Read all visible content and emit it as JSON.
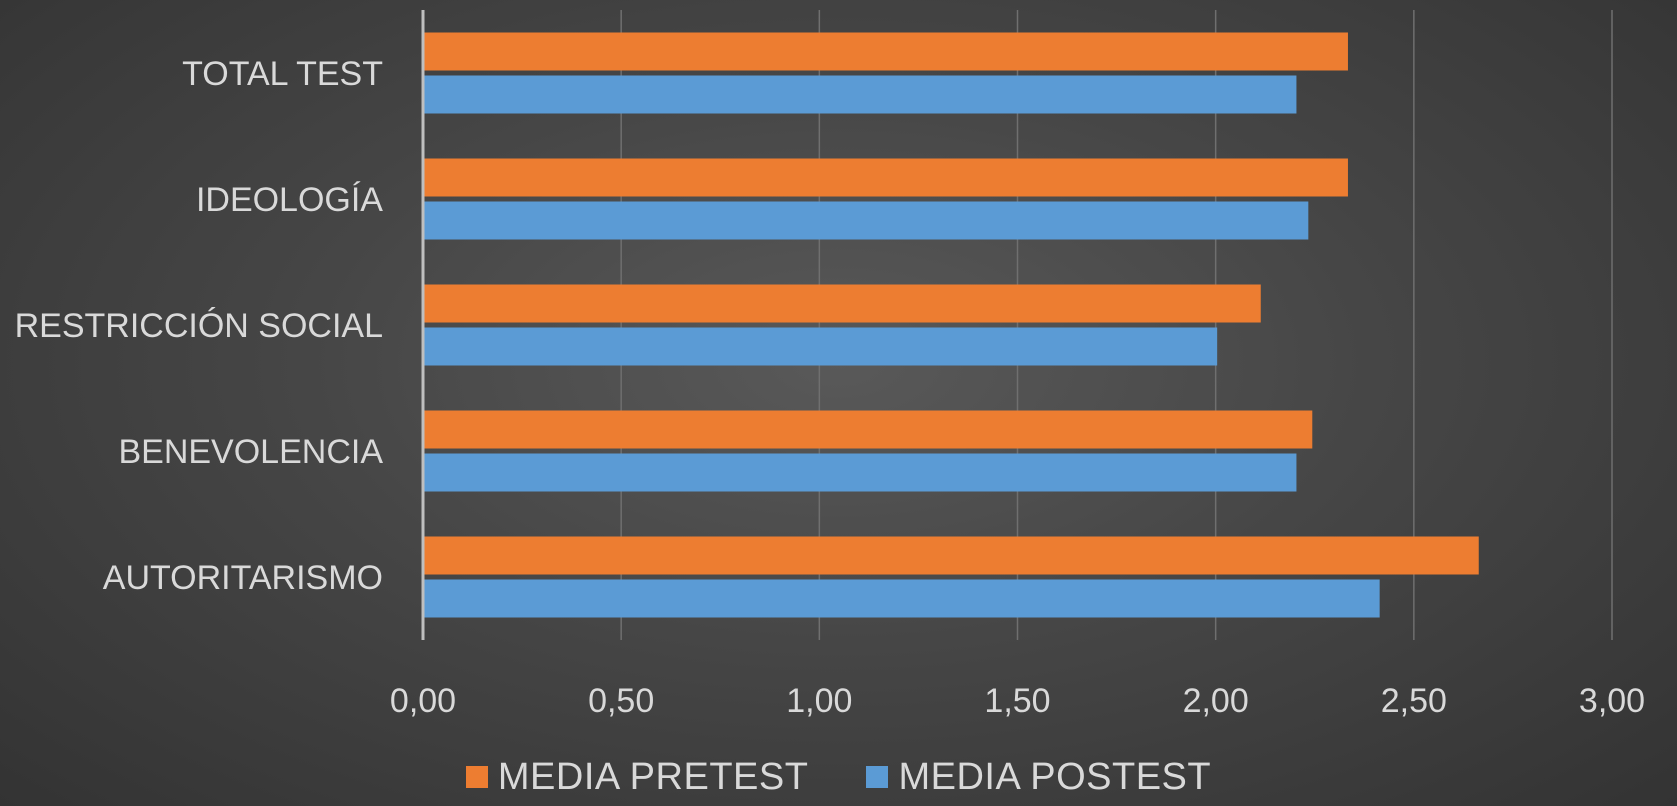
{
  "chart_data": {
    "type": "bar",
    "orientation": "horizontal",
    "categories": [
      "TOTAL TEST",
      "IDEOLOGÍA",
      "RESTRICCIÓN SOCIAL",
      "BENEVOLENCIA",
      "AUTORITARISMO"
    ],
    "series": [
      {
        "name": "MEDIA PRETEST",
        "color": "#ED7D31",
        "values": [
          2.33,
          2.33,
          2.11,
          2.24,
          2.66
        ]
      },
      {
        "name": "MEDIA POSTEST",
        "color": "#5B9BD5",
        "values": [
          2.2,
          2.23,
          2.0,
          2.2,
          2.41
        ]
      }
    ],
    "xlim": [
      0,
      3
    ],
    "xticks": [
      "0,00",
      "0,50",
      "1,00",
      "1,50",
      "2,00",
      "2,50",
      "3,00"
    ],
    "grid": true,
    "legend_position": "bottom",
    "title": "",
    "xlabel": "",
    "ylabel": ""
  }
}
